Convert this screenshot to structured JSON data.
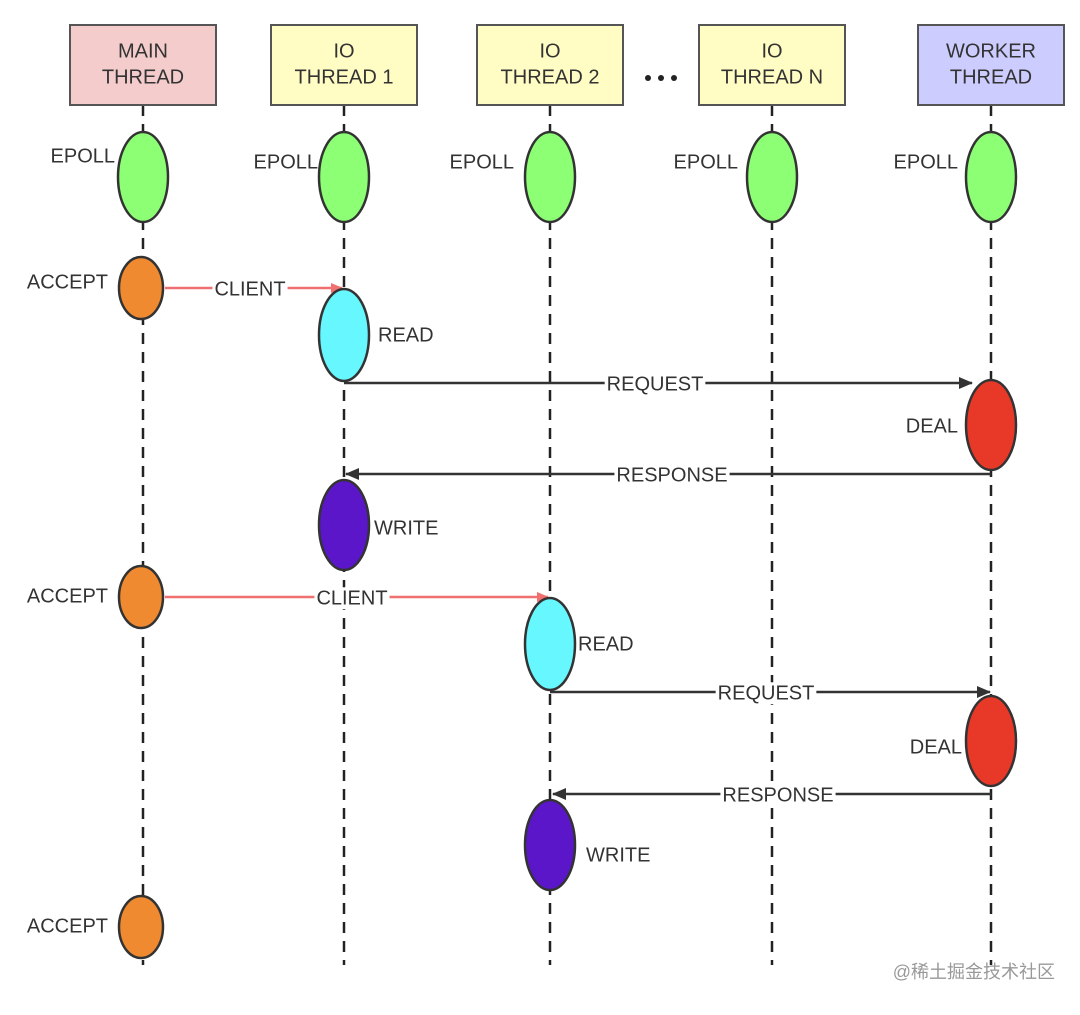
{
  "lanes": [
    {
      "label": [
        "MAIN",
        "THREAD"
      ]
    },
    {
      "label": [
        "IO",
        "THREAD 1"
      ]
    },
    {
      "label": [
        "IO",
        "THREAD 2"
      ]
    },
    {
      "label": [
        "IO",
        "THREAD N"
      ]
    },
    {
      "label": [
        "WORKER",
        "THREAD"
      ]
    }
  ],
  "events": [
    {
      "label": "EPOLL"
    },
    {
      "label": "EPOLL"
    },
    {
      "label": "EPOLL"
    },
    {
      "label": "EPOLL"
    },
    {
      "label": "EPOLL"
    },
    {
      "label": "ACCEPT"
    },
    {
      "label": "READ"
    },
    {
      "label": "DEAL"
    },
    {
      "label": "WRITE"
    },
    {
      "label": "ACCEPT"
    },
    {
      "label": "READ"
    },
    {
      "label": "DEAL"
    },
    {
      "label": "WRITE"
    },
    {
      "label": "ACCEPT"
    }
  ],
  "messages": [
    {
      "label": "CLIENT"
    },
    {
      "label": "REQUEST"
    },
    {
      "label": "RESPONSE"
    },
    {
      "label": "CLIENT"
    },
    {
      "label": "REQUEST"
    },
    {
      "label": "RESPONSE"
    }
  ],
  "watermark": "@稀土掘金技术社区"
}
